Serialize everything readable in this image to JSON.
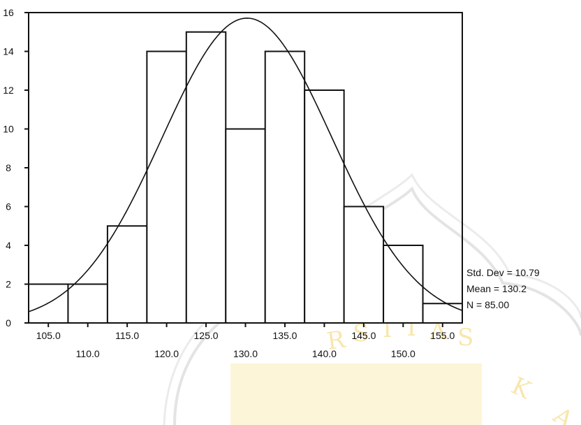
{
  "chart_data": {
    "type": "bar",
    "title": "",
    "xlabel": "",
    "ylabel": "",
    "bins": [
      {
        "start": 102.5,
        "end": 107.5,
        "count": 2
      },
      {
        "start": 107.5,
        "end": 112.5,
        "count": 2
      },
      {
        "start": 112.5,
        "end": 117.5,
        "count": 5
      },
      {
        "start": 117.5,
        "end": 122.5,
        "count": 14
      },
      {
        "start": 122.5,
        "end": 127.5,
        "count": 15
      },
      {
        "start": 127.5,
        "end": 132.5,
        "count": 10
      },
      {
        "start": 132.5,
        "end": 137.5,
        "count": 14
      },
      {
        "start": 137.5,
        "end": 142.5,
        "count": 12
      },
      {
        "start": 142.5,
        "end": 147.5,
        "count": 6
      },
      {
        "start": 147.5,
        "end": 152.5,
        "count": 4
      },
      {
        "start": 152.5,
        "end": 157.5,
        "count": 1
      }
    ],
    "normal_curve": {
      "mean": 130.2,
      "std_dev": 10.79,
      "n": 85
    },
    "xlim": [
      102.5,
      157.5
    ],
    "ylim": [
      0,
      16
    ],
    "x_ticks_upper": [
      "105.0",
      "115.0",
      "125.0",
      "135.0",
      "145.0",
      "155.0"
    ],
    "x_ticks_lower": [
      "110.0",
      "120.0",
      "130.0",
      "140.0",
      "150.0"
    ],
    "x_tick_values_upper": [
      105,
      115,
      125,
      135,
      145,
      155
    ],
    "x_tick_values_lower": [
      110,
      120,
      130,
      140,
      150
    ],
    "y_ticks": [
      "0",
      "2",
      "4",
      "6",
      "8",
      "10",
      "12",
      "14",
      "16"
    ],
    "y_tick_values": [
      0,
      2,
      4,
      6,
      8,
      10,
      12,
      14,
      16
    ],
    "grid": false,
    "stats_labels": [
      "Std. Dev = 10.79",
      "Mean = 130.2",
      "N = 85.00"
    ],
    "colors": {
      "bar_fill": "#ffffff",
      "line": "#111111",
      "watermark": "#f3d26b"
    }
  }
}
